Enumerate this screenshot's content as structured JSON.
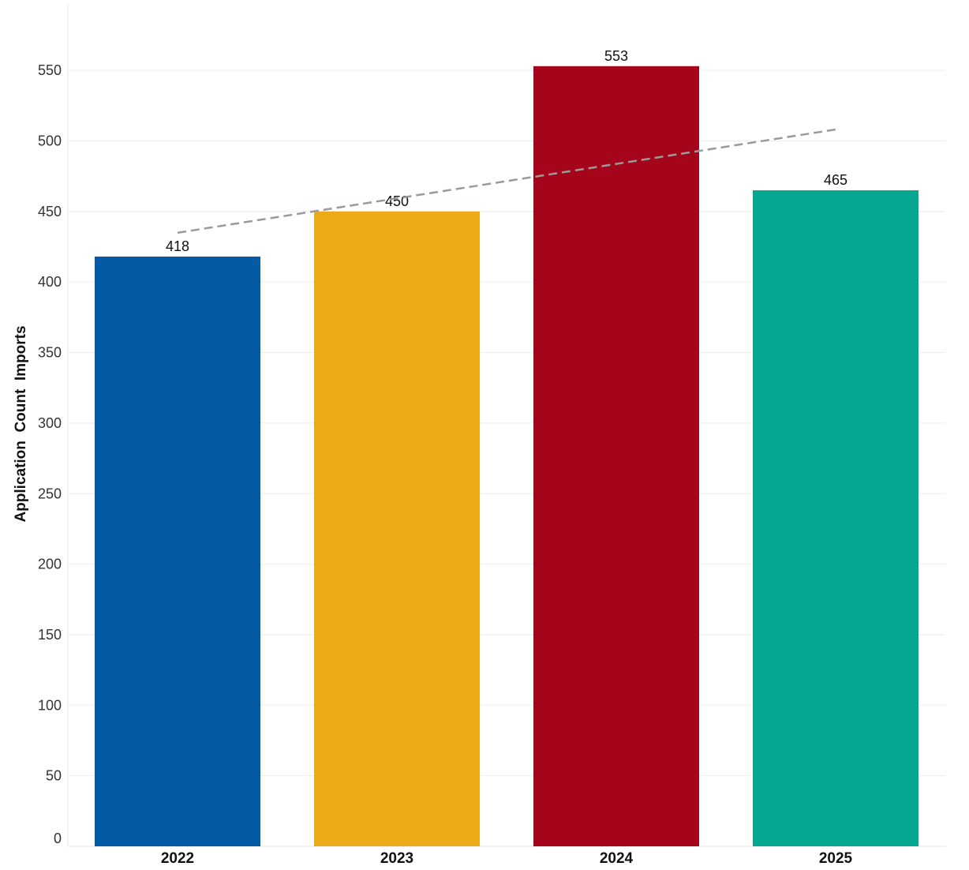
{
  "chart_data": {
    "type": "bar",
    "categories": [
      "2022",
      "2023",
      "2024",
      "2025"
    ],
    "values": [
      418,
      450,
      553,
      465
    ],
    "data_labels": [
      "418",
      "450",
      "553",
      "465"
    ],
    "colors": [
      "#045AA4",
      "#EBAA17",
      "#A4051B",
      "#05A790"
    ],
    "title": "",
    "xlabel": "",
    "ylabel": "Application  Count  Imports",
    "ylim": [
      0,
      590
    ],
    "yticks": [
      0,
      50,
      100,
      150,
      200,
      250,
      300,
      350,
      400,
      450,
      500,
      550
    ],
    "ytick_labels": [
      "0",
      "50",
      "100",
      "150",
      "200",
      "250",
      "300",
      "350",
      "400",
      "450",
      "500",
      "550"
    ],
    "grid": true,
    "legend": false,
    "trendline": {
      "type": "linear",
      "style": "dashed",
      "color": "#9a9a9a"
    }
  }
}
